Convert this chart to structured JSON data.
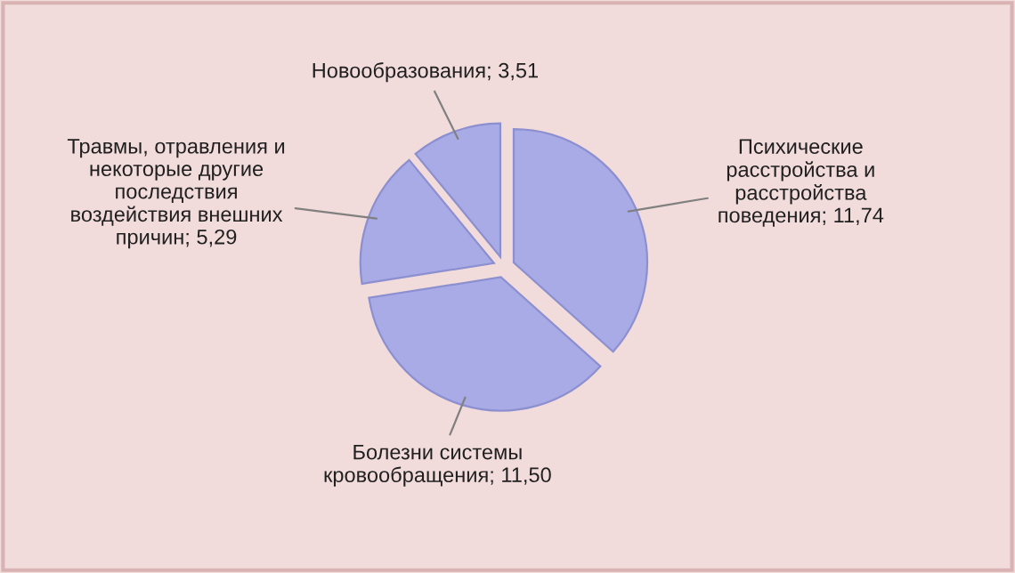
{
  "chart_data": {
    "type": "pie",
    "categories": [
      "Психические\nрасстройства и\nрасстройства\nповедения",
      "Болезни системы\nкровообращения",
      "Травмы, отравления и\nнекоторые другие\nпоследствия\nвоздействия внешних\nпричин",
      "Новообразования"
    ],
    "values": [
      11.74,
      11.5,
      5.29,
      3.51
    ],
    "value_labels": [
      "11,74",
      "11,50",
      "5,29",
      "3,51"
    ],
    "colors": [
      "#a9abe6",
      "#a9abe6",
      "#a9abe6",
      "#a9abe6"
    ],
    "legend": false
  }
}
